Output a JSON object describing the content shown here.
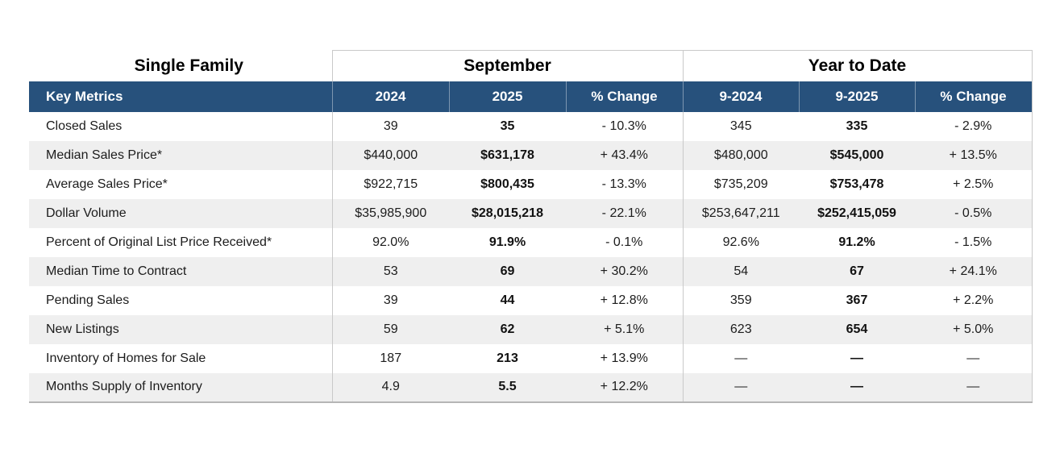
{
  "report": {
    "title": "Single Family",
    "sections": {
      "september": "September",
      "year_to_date": "Year to Date"
    },
    "columns": {
      "key_metrics": "Key Metrics",
      "sep_2024": "2024",
      "sep_2025": "2025",
      "sep_change": "% Change",
      "ytd_2024": "9-2024",
      "ytd_2025": "9-2025",
      "ytd_change": "% Change"
    },
    "rows": [
      {
        "metric": "Closed Sales",
        "sep_2024": "39",
        "sep_2025": "35",
        "sep_change": "- 10.3%",
        "ytd_2024": "345",
        "ytd_2025": "335",
        "ytd_change": "- 2.9%"
      },
      {
        "metric": "Median Sales Price*",
        "sep_2024": "$440,000",
        "sep_2025": "$631,178",
        "sep_change": "+ 43.4%",
        "ytd_2024": "$480,000",
        "ytd_2025": "$545,000",
        "ytd_change": "+ 13.5%"
      },
      {
        "metric": "Average Sales Price*",
        "sep_2024": "$922,715",
        "sep_2025": "$800,435",
        "sep_change": "- 13.3%",
        "ytd_2024": "$735,209",
        "ytd_2025": "$753,478",
        "ytd_change": "+ 2.5%"
      },
      {
        "metric": "Dollar Volume",
        "sep_2024": "$35,985,900",
        "sep_2025": "$28,015,218",
        "sep_change": "- 22.1%",
        "ytd_2024": "$253,647,211",
        "ytd_2025": "$252,415,059",
        "ytd_change": "- 0.5%"
      },
      {
        "metric": "Percent of Original List Price Received*",
        "sep_2024": "92.0%",
        "sep_2025": "91.9%",
        "sep_change": "- 0.1%",
        "ytd_2024": "92.6%",
        "ytd_2025": "91.2%",
        "ytd_change": "- 1.5%"
      },
      {
        "metric": "Median Time to Contract",
        "sep_2024": "53",
        "sep_2025": "69",
        "sep_change": "+ 30.2%",
        "ytd_2024": "54",
        "ytd_2025": "67",
        "ytd_change": "+ 24.1%"
      },
      {
        "metric": "Pending Sales",
        "sep_2024": "39",
        "sep_2025": "44",
        "sep_change": "+ 12.8%",
        "ytd_2024": "359",
        "ytd_2025": "367",
        "ytd_change": "+ 2.2%"
      },
      {
        "metric": "New Listings",
        "sep_2024": "59",
        "sep_2025": "62",
        "sep_change": "+ 5.1%",
        "ytd_2024": "623",
        "ytd_2025": "654",
        "ytd_change": "+ 5.0%"
      },
      {
        "metric": "Inventory of Homes for Sale",
        "sep_2024": "187",
        "sep_2025": "213",
        "sep_change": "+ 13.9%",
        "ytd_2024": "—",
        "ytd_2025": "—",
        "ytd_change": "—"
      },
      {
        "metric": "Months Supply of Inventory",
        "sep_2024": "4.9",
        "sep_2025": "5.5",
        "sep_change": "+ 12.2%",
        "ytd_2024": "—",
        "ytd_2025": "—",
        "ytd_change": "—"
      }
    ],
    "colors": {
      "header_bg": "#27517c",
      "stripe": "#efefef",
      "border": "#c9c9c9",
      "text": "#1c1c1c"
    }
  }
}
